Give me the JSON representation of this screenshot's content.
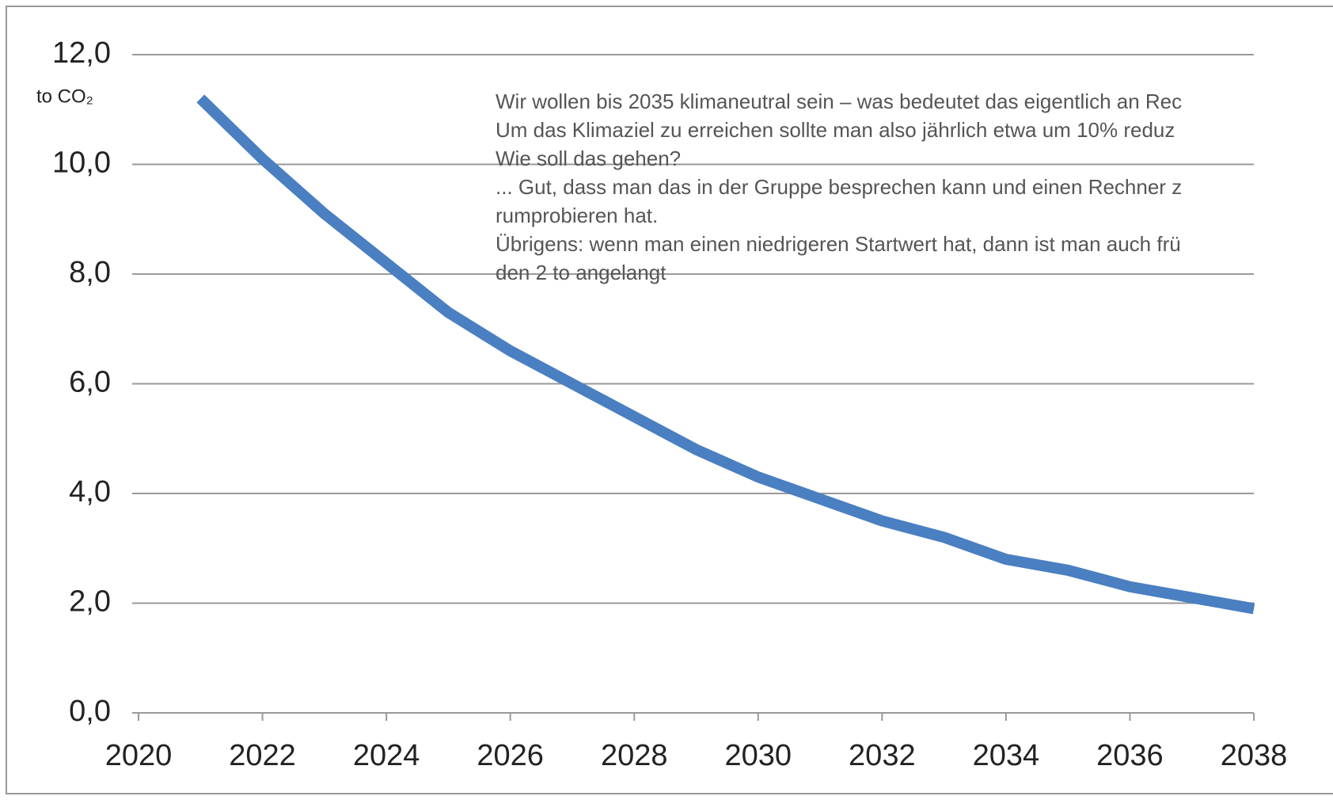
{
  "chart_data": {
    "type": "line",
    "ylabel": "to CO₂",
    "x": [
      2021,
      2022,
      2023,
      2024,
      2025,
      2026,
      2027,
      2028,
      2029,
      2030,
      2031,
      2032,
      2033,
      2034,
      2035,
      2036,
      2037,
      2038
    ],
    "series": [
      {
        "name": "CO₂",
        "color": "#4a7fc1",
        "values": [
          11.2,
          10.1,
          9.1,
          8.2,
          7.3,
          6.6,
          6.0,
          5.4,
          4.8,
          4.3,
          3.9,
          3.5,
          3.2,
          2.8,
          2.6,
          2.3,
          2.1,
          1.9
        ]
      }
    ],
    "xlim": [
      2020,
      2038
    ],
    "xticks": [
      2020,
      2022,
      2024,
      2026,
      2028,
      2030,
      2032,
      2034,
      2036,
      2038
    ],
    "ylim": [
      0,
      12
    ],
    "yticks": [
      {
        "value": 0,
        "label": "0,0"
      },
      {
        "value": 2,
        "label": "2,0"
      },
      {
        "value": 4,
        "label": "4,0"
      },
      {
        "value": 6,
        "label": "6,0"
      },
      {
        "value": 8,
        "label": "8,0"
      },
      {
        "value": 10,
        "label": "10,0"
      },
      {
        "value": 12,
        "label": "12,0"
      }
    ],
    "grid": true,
    "annotation": [
      "Wir wollen bis 2035 klimaneutral sein – was bedeutet das eigentlich an Rec",
      "Um das Klimaziel zu erreichen sollte man also jährlich etwa um 10% reduz",
      "Wie soll das gehen?",
      "... Gut, dass man das in der Gruppe besprechen kann und einen Rechner z",
      "rumprobieren hat.",
      "Übrigens: wenn man einen niedrigeren Startwert hat, dann ist man auch frü",
      "den 2 to angelangt"
    ]
  }
}
